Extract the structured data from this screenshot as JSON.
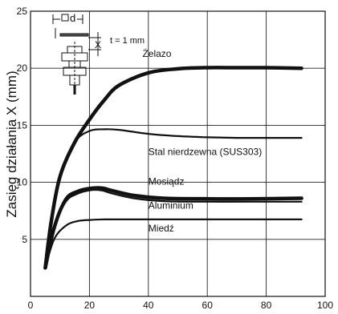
{
  "chart_data": {
    "type": "line",
    "title": "",
    "xlabel": "",
    "ylabel": "Zasięg działania X (mm)",
    "xlim": [
      0,
      100
    ],
    "ylim": [
      0,
      25
    ],
    "xticks": [
      "0",
      "20",
      "40",
      "60",
      "80",
      "100"
    ],
    "yticks": [
      "5",
      "10",
      "15",
      "20",
      "25"
    ],
    "grid": true,
    "series": [
      {
        "name": "Żelazo",
        "line": "thick",
        "x": [
          5,
          7,
          10,
          15,
          20,
          25,
          30,
          40,
          50,
          60,
          70,
          80,
          92
        ],
        "y": [
          2.5,
          6.5,
          10.5,
          13.5,
          15.5,
          17.2,
          18.5,
          19.6,
          19.95,
          20.05,
          20.05,
          20.05,
          20.0
        ]
      },
      {
        "name": "Stal nierdzewna (SUS303)",
        "x": [
          5,
          7,
          10,
          15,
          20,
          25,
          30,
          40,
          50,
          60,
          70,
          80,
          92
        ],
        "y": [
          2.5,
          6.5,
          10.5,
          13.5,
          14.5,
          14.65,
          14.6,
          14.25,
          14.05,
          13.95,
          13.9,
          13.9,
          13.9
        ]
      },
      {
        "name": "Mosiądz",
        "line": "thick",
        "x": [
          5,
          8,
          12,
          16,
          20,
          24,
          28,
          35,
          45,
          60,
          75,
          92
        ],
        "y": [
          2.5,
          6.0,
          8.5,
          9.2,
          9.45,
          9.5,
          9.25,
          8.85,
          8.6,
          8.55,
          8.55,
          8.6
        ]
      },
      {
        "name": "Aluminium",
        "x": [
          5,
          8,
          12,
          16,
          20,
          24,
          28,
          35,
          45,
          60,
          75,
          92
        ],
        "y": [
          2.5,
          6.0,
          8.3,
          9.0,
          9.3,
          9.3,
          9.0,
          8.6,
          8.35,
          8.3,
          8.3,
          8.3
        ]
      },
      {
        "name": "Miedź",
        "x": [
          5,
          8,
          12,
          16,
          20,
          25,
          30,
          40,
          60,
          80,
          92
        ],
        "y": [
          2.5,
          5.0,
          6.2,
          6.6,
          6.7,
          6.75,
          6.75,
          6.75,
          6.75,
          6.75,
          6.75
        ]
      }
    ],
    "annotations": {
      "target_side": "d",
      "distance": "X",
      "thickness": "t = 1 mm"
    }
  }
}
